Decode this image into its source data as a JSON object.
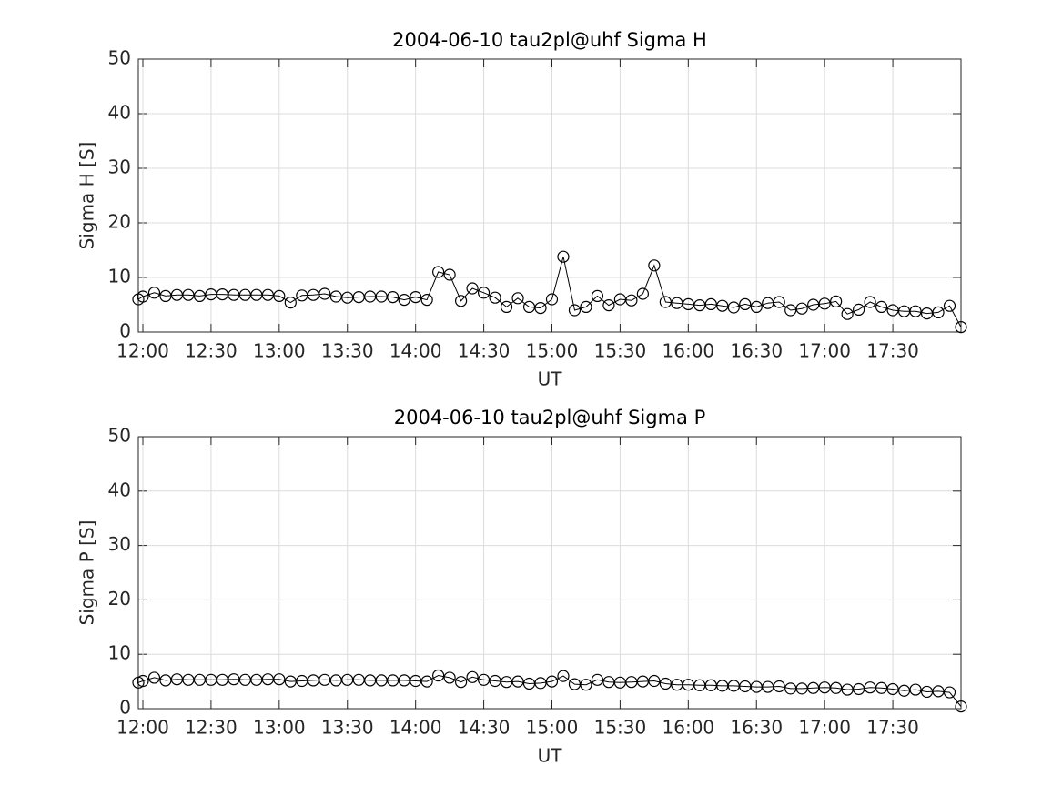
{
  "chart_data": [
    {
      "type": "line",
      "title": "2004-06-10  tau2pl@uhf Sigma H",
      "xlabel": "UT",
      "ylabel": "Sigma H [S]",
      "x": [
        "11:58",
        "12:00",
        "12:05",
        "12:10",
        "12:15",
        "12:20",
        "12:25",
        "12:30",
        "12:35",
        "12:40",
        "12:45",
        "12:50",
        "12:55",
        "13:00",
        "13:05",
        "13:10",
        "13:15",
        "13:20",
        "13:25",
        "13:30",
        "13:35",
        "13:40",
        "13:45",
        "13:50",
        "13:55",
        "14:00",
        "14:05",
        "14:10",
        "14:15",
        "14:20",
        "14:25",
        "14:30",
        "14:35",
        "14:40",
        "14:45",
        "14:50",
        "14:55",
        "15:00",
        "15:05",
        "15:10",
        "15:15",
        "15:20",
        "15:25",
        "15:30",
        "15:35",
        "15:40",
        "15:45",
        "15:50",
        "15:55",
        "16:00",
        "16:05",
        "16:10",
        "16:15",
        "16:20",
        "16:25",
        "16:30",
        "16:35",
        "16:40",
        "16:45",
        "16:50",
        "16:55",
        "17:00",
        "17:05",
        "17:10",
        "17:15",
        "17:20",
        "17:25",
        "17:30",
        "17:35",
        "17:40",
        "17:45",
        "17:50",
        "17:55",
        "18:00"
      ],
      "values": [
        6.0,
        6.5,
        7.2,
        6.6,
        6.8,
        6.8,
        6.6,
        6.9,
        6.9,
        6.8,
        6.8,
        6.8,
        6.8,
        6.6,
        5.4,
        6.7,
        6.8,
        7.0,
        6.5,
        6.3,
        6.4,
        6.5,
        6.5,
        6.4,
        5.9,
        6.4,
        5.9,
        11.0,
        10.5,
        5.7,
        8.0,
        7.2,
        6.3,
        4.6,
        6.2,
        4.6,
        4.4,
        6.0,
        13.8,
        4.0,
        4.6,
        6.6,
        4.9,
        6.0,
        5.8,
        7.0,
        12.2,
        5.5,
        5.3,
        5.1,
        4.9,
        5.1,
        4.8,
        4.5,
        5.1,
        4.6,
        5.3,
        5.5,
        4.0,
        4.3,
        5.0,
        5.2,
        5.6,
        3.3,
        4.1,
        5.5,
        4.6,
        4.0,
        3.8,
        3.8,
        3.4,
        3.6,
        4.8,
        0.9
      ],
      "color": "#000000",
      "marker": "circle",
      "xlim": [
        "11:58",
        "18:00"
      ],
      "xticks": [
        "12:00",
        "12:30",
        "13:00",
        "13:30",
        "14:00",
        "14:30",
        "15:00",
        "15:30",
        "16:00",
        "16:30",
        "17:00",
        "17:30"
      ],
      "ylim": [
        0,
        50
      ],
      "yticks": [
        0,
        10,
        20,
        30,
        40,
        50
      ],
      "grid": true
    },
    {
      "type": "line",
      "title": "2004-06-10  tau2pl@uhf Sigma P",
      "xlabel": "UT",
      "ylabel": "Sigma P [S]",
      "x": [
        "11:58",
        "12:00",
        "12:05",
        "12:10",
        "12:15",
        "12:20",
        "12:25",
        "12:30",
        "12:35",
        "12:40",
        "12:45",
        "12:50",
        "12:55",
        "13:00",
        "13:05",
        "13:10",
        "13:15",
        "13:20",
        "13:25",
        "13:30",
        "13:35",
        "13:40",
        "13:45",
        "13:50",
        "13:55",
        "14:00",
        "14:05",
        "14:10",
        "14:15",
        "14:20",
        "14:25",
        "14:30",
        "14:35",
        "14:40",
        "14:45",
        "14:50",
        "14:55",
        "15:00",
        "15:05",
        "15:10",
        "15:15",
        "15:20",
        "15:25",
        "15:30",
        "15:35",
        "15:40",
        "15:45",
        "15:50",
        "15:55",
        "16:00",
        "16:05",
        "16:10",
        "16:15",
        "16:20",
        "16:25",
        "16:30",
        "16:35",
        "16:40",
        "16:45",
        "16:50",
        "16:55",
        "17:00",
        "17:05",
        "17:10",
        "17:15",
        "17:20",
        "17:25",
        "17:30",
        "17:35",
        "17:40",
        "17:45",
        "17:50",
        "17:55",
        "18:00"
      ],
      "values": [
        4.8,
        5.1,
        5.7,
        5.2,
        5.4,
        5.3,
        5.3,
        5.3,
        5.3,
        5.4,
        5.3,
        5.3,
        5.4,
        5.4,
        5.0,
        5.1,
        5.2,
        5.3,
        5.2,
        5.3,
        5.3,
        5.2,
        5.2,
        5.2,
        5.2,
        5.1,
        5.0,
        6.1,
        5.7,
        4.9,
        5.8,
        5.3,
        5.1,
        4.9,
        5.0,
        4.6,
        4.7,
        5.0,
        6.0,
        4.5,
        4.4,
        5.3,
        4.9,
        4.8,
        4.9,
        5.0,
        5.1,
        4.6,
        4.4,
        4.4,
        4.3,
        4.3,
        4.2,
        4.2,
        4.1,
        4.0,
        4.0,
        4.1,
        3.7,
        3.7,
        3.8,
        3.9,
        3.8,
        3.5,
        3.6,
        3.9,
        3.8,
        3.6,
        3.3,
        3.5,
        3.1,
        3.2,
        3.0,
        0.4
      ],
      "color": "#000000",
      "marker": "circle",
      "xlim": [
        "11:58",
        "18:00"
      ],
      "xticks": [
        "12:00",
        "12:30",
        "13:00",
        "13:30",
        "14:00",
        "14:30",
        "15:00",
        "15:30",
        "16:00",
        "16:30",
        "17:00",
        "17:30"
      ],
      "ylim": [
        0,
        50
      ],
      "yticks": [
        0,
        10,
        20,
        30,
        40,
        50
      ],
      "grid": true
    }
  ]
}
